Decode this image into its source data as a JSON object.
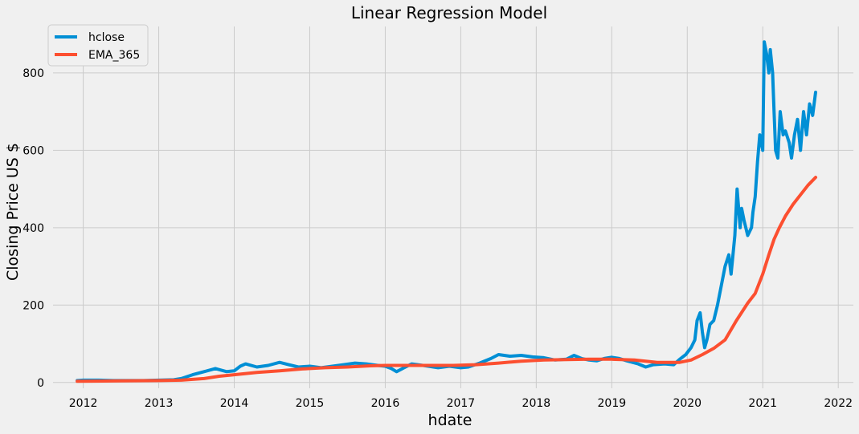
{
  "chart_data": {
    "type": "line",
    "title": "Linear Regression Model",
    "xlabel": "hdate",
    "ylabel": "Closing Price US $",
    "xlim": [
      2011.6,
      2022.2
    ],
    "ylim": [
      -15,
      920
    ],
    "x_ticks": [
      2012,
      2013,
      2014,
      2015,
      2016,
      2017,
      2018,
      2019,
      2020,
      2021,
      2022
    ],
    "x_tick_labels": [
      "2012",
      "2013",
      "2014",
      "2015",
      "2016",
      "2017",
      "2018",
      "2019",
      "2020",
      "2021",
      "2022"
    ],
    "y_ticks": [
      0,
      200,
      400,
      600,
      800
    ],
    "y_tick_labels": [
      "0",
      "200",
      "400",
      "600",
      "800"
    ],
    "grid": true,
    "legend_position": "top-left",
    "series": [
      {
        "name": "hclose",
        "color": "#008fd5",
        "x": [
          2011.92,
          2012.0,
          2012.2,
          2012.4,
          2012.6,
          2012.8,
          2013.0,
          2013.2,
          2013.3,
          2013.45,
          2013.6,
          2013.75,
          2013.9,
          2014.0,
          2014.08,
          2014.15,
          2014.3,
          2014.45,
          2014.6,
          2014.72,
          2014.85,
          2015.0,
          2015.15,
          2015.3,
          2015.45,
          2015.6,
          2015.75,
          2015.9,
          2016.0,
          2016.08,
          2016.15,
          2016.25,
          2016.35,
          2016.5,
          2016.7,
          2016.85,
          2017.0,
          2017.1,
          2017.25,
          2017.4,
          2017.5,
          2017.65,
          2017.8,
          2017.95,
          2018.1,
          2018.25,
          2018.4,
          2018.5,
          2018.6,
          2018.7,
          2018.8,
          2018.9,
          2019.0,
          2019.1,
          2019.2,
          2019.35,
          2019.45,
          2019.55,
          2019.7,
          2019.82,
          2019.9,
          2019.98,
          2020.05,
          2020.1,
          2020.13,
          2020.17,
          2020.2,
          2020.23,
          2020.26,
          2020.3,
          2020.35,
          2020.4,
          2020.45,
          2020.5,
          2020.55,
          2020.58,
          2020.6,
          2020.63,
          2020.66,
          2020.7,
          2020.72,
          2020.75,
          2020.8,
          2020.85,
          2020.87,
          2020.9,
          2020.93,
          2020.96,
          2021.0,
          2021.02,
          2021.05,
          2021.08,
          2021.1,
          2021.13,
          2021.15,
          2021.17,
          2021.2,
          2021.23,
          2021.27,
          2021.3,
          2021.35,
          2021.38,
          2021.42,
          2021.46,
          2021.5,
          2021.54,
          2021.58,
          2021.62,
          2021.66,
          2021.7
        ],
        "values": [
          5,
          6,
          6,
          5,
          5,
          5,
          6,
          7,
          10,
          20,
          28,
          36,
          28,
          30,
          42,
          48,
          40,
          44,
          52,
          46,
          40,
          42,
          38,
          42,
          46,
          50,
          48,
          44,
          42,
          36,
          28,
          38,
          48,
          44,
          38,
          42,
          38,
          40,
          50,
          62,
          72,
          68,
          70,
          66,
          64,
          58,
          60,
          70,
          62,
          58,
          56,
          62,
          65,
          62,
          56,
          48,
          40,
          46,
          48,
          46,
          60,
          72,
          90,
          110,
          160,
          180,
          130,
          90,
          110,
          150,
          160,
          200,
          250,
          300,
          330,
          280,
          320,
          380,
          500,
          400,
          450,
          420,
          380,
          400,
          440,
          480,
          570,
          640,
          600,
          880,
          850,
          800,
          860,
          800,
          700,
          600,
          580,
          700,
          640,
          650,
          620,
          580,
          640,
          680,
          600,
          700,
          640,
          720,
          690,
          750
        ]
      },
      {
        "name": "EMA_365",
        "color": "#fc4f30",
        "x": [
          2011.92,
          2012.5,
          2013.0,
          2013.3,
          2013.6,
          2013.8,
          2014.0,
          2014.3,
          2014.6,
          2014.9,
          2015.2,
          2015.5,
          2015.8,
          2016.0,
          2016.3,
          2016.6,
          2016.9,
          2017.2,
          2017.5,
          2017.8,
          2018.1,
          2018.4,
          2018.7,
          2019.0,
          2019.3,
          2019.6,
          2019.9,
          2020.05,
          2020.2,
          2020.35,
          2020.5,
          2020.65,
          2020.8,
          2020.9,
          2021.0,
          2021.08,
          2021.15,
          2021.22,
          2021.3,
          2021.4,
          2021.5,
          2021.6,
          2021.7
        ],
        "values": [
          3,
          4,
          5,
          6,
          10,
          16,
          20,
          26,
          30,
          35,
          38,
          40,
          43,
          44,
          44,
          44,
          44,
          46,
          50,
          55,
          58,
          59,
          60,
          60,
          58,
          52,
          52,
          58,
          72,
          88,
          110,
          160,
          205,
          230,
          280,
          330,
          370,
          400,
          430,
          460,
          485,
          510,
          530
        ]
      }
    ]
  }
}
